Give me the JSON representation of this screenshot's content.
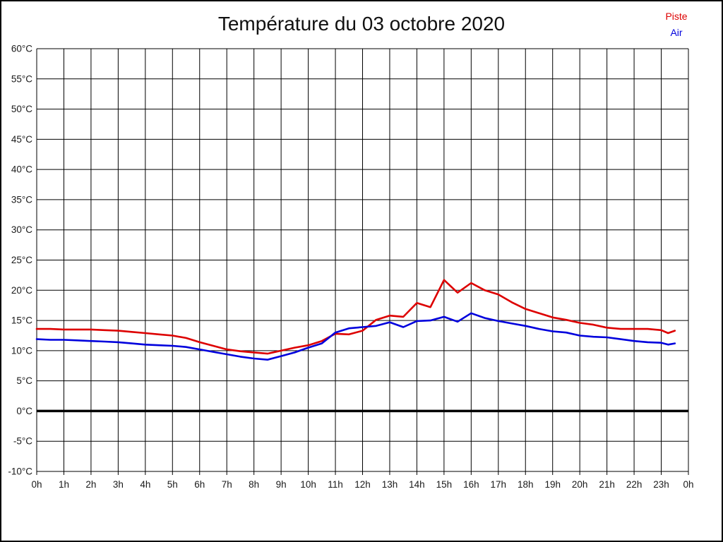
{
  "chart_data": {
    "type": "line",
    "title": "Température du 03 octobre 2020",
    "xlabel": "",
    "ylabel": "",
    "ylim": [
      -10,
      60
    ],
    "y_tick_step": 5,
    "xlim_hours": [
      0,
      24
    ],
    "grid": true,
    "zero_line_bold": true,
    "grid_color": "#000000",
    "text_color": "#1a1a1a",
    "legend_position": "top-right",
    "x_tick_labels": [
      "0h",
      "1h",
      "2h",
      "3h",
      "4h",
      "5h",
      "6h",
      "7h",
      "8h",
      "9h",
      "10h",
      "11h",
      "12h",
      "13h",
      "14h",
      "15h",
      "16h",
      "17h",
      "18h",
      "19h",
      "20h",
      "21h",
      "22h",
      "23h",
      "0h"
    ],
    "y_tick_labels": [
      "60°C",
      "55°C",
      "50°C",
      "45°C",
      "40°C",
      "35°C",
      "30°C",
      "25°C",
      "20°C",
      "15°C",
      "10°C",
      "5°C",
      "0°C",
      "-5°C",
      "-10°C"
    ],
    "x": [
      0,
      0.5,
      1,
      1.5,
      2,
      2.5,
      3,
      3.5,
      4,
      4.5,
      5,
      5.5,
      6,
      6.5,
      7,
      7.5,
      8,
      8.5,
      9,
      9.5,
      10,
      10.5,
      11,
      11.5,
      12,
      12.5,
      13,
      13.5,
      14,
      14.5,
      15,
      15.5,
      16,
      16.5,
      17,
      17.5,
      18,
      18.5,
      19,
      19.5,
      20,
      20.5,
      21,
      21.5,
      22,
      22.5,
      23,
      23.25,
      23.5
    ],
    "series": [
      {
        "name": "Piste",
        "color": "#dd0000",
        "values": [
          13.6,
          13.6,
          13.5,
          13.5,
          13.5,
          13.4,
          13.3,
          13.1,
          12.9,
          12.7,
          12.5,
          12.1,
          11.4,
          10.8,
          10.2,
          9.9,
          9.7,
          9.5,
          10.0,
          10.5,
          10.9,
          11.6,
          12.8,
          12.7,
          13.3,
          15.1,
          15.8,
          15.6,
          17.9,
          17.2,
          21.7,
          19.6,
          21.2,
          20.0,
          19.3,
          18.0,
          16.9,
          16.2,
          15.5,
          15.1,
          14.6,
          14.3,
          13.8,
          13.6,
          13.6,
          13.6,
          13.4,
          12.9,
          13.3
        ]
      },
      {
        "name": "Air",
        "color": "#0000dd",
        "values": [
          11.9,
          11.8,
          11.8,
          11.7,
          11.6,
          11.5,
          11.4,
          11.2,
          11.0,
          10.9,
          10.8,
          10.6,
          10.2,
          9.8,
          9.4,
          9.0,
          8.7,
          8.5,
          9.1,
          9.7,
          10.5,
          11.2,
          13.0,
          13.7,
          13.9,
          14.1,
          14.7,
          13.9,
          14.9,
          15.0,
          15.6,
          14.8,
          16.2,
          15.4,
          14.9,
          14.5,
          14.1,
          13.6,
          13.2,
          13.0,
          12.5,
          12.3,
          12.2,
          11.9,
          11.6,
          11.4,
          11.3,
          11.0,
          11.2
        ]
      }
    ]
  }
}
